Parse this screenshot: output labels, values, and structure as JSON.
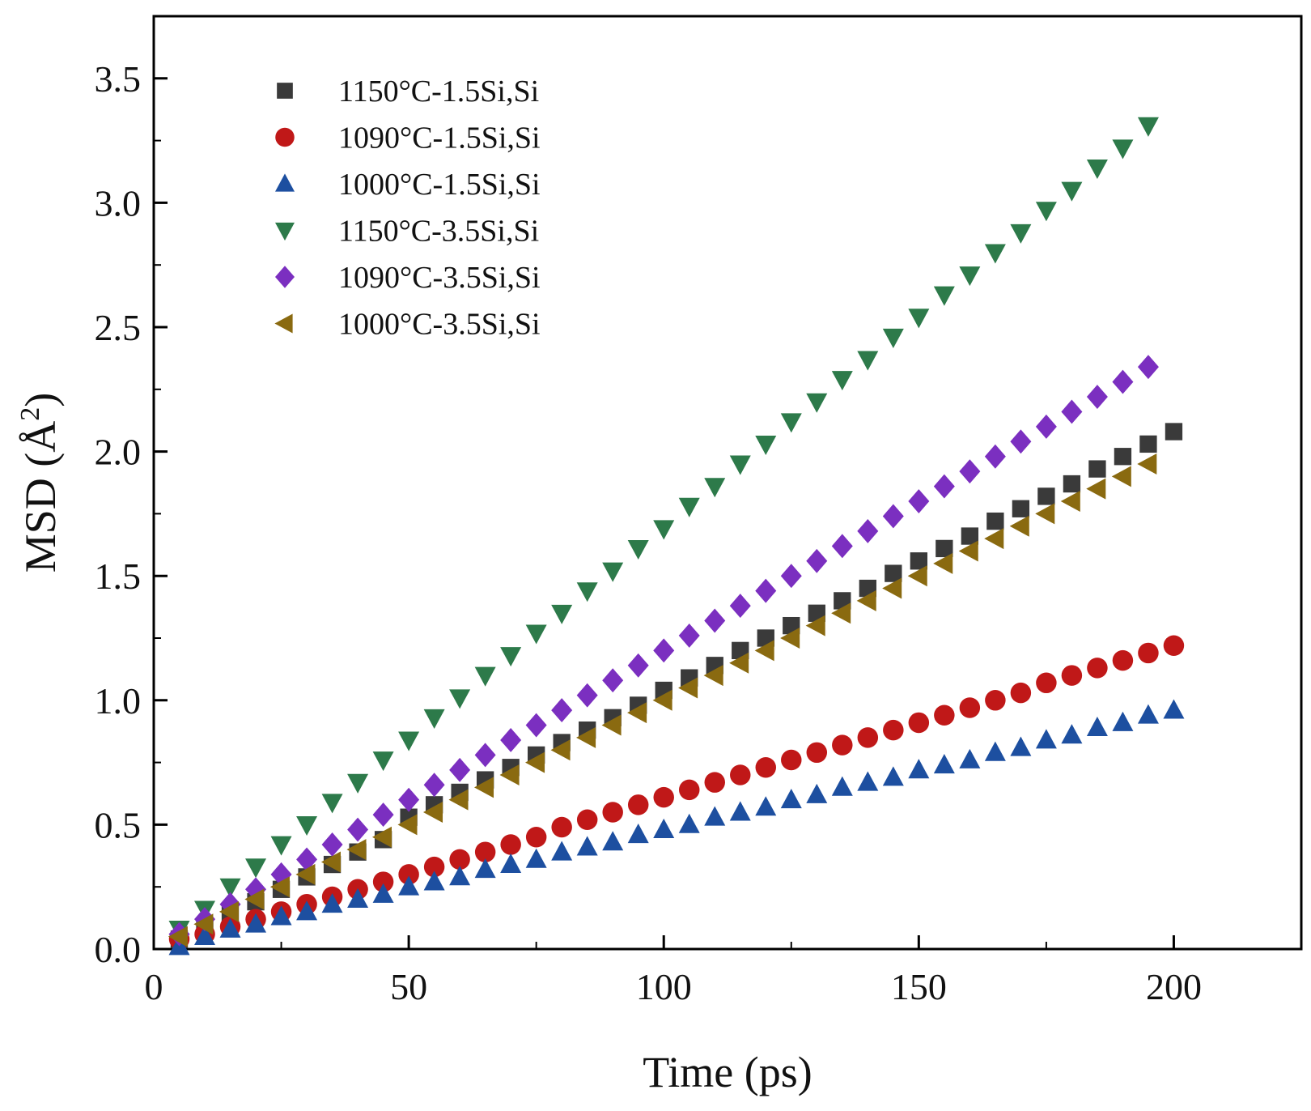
{
  "chart_data": {
    "type": "scatter",
    "title": "",
    "xlabel": "Time (ps)",
    "ylabel_main": "MSD (Å",
    "ylabel_sup": "2",
    "ylabel_close": ")",
    "xlim": [
      0,
      225
    ],
    "ylim": [
      0,
      3.75
    ],
    "xticks": [
      0,
      50,
      100,
      150,
      200
    ],
    "xtick_labels": [
      "0",
      "50",
      "100",
      "150",
      "200"
    ],
    "yticks": [
      0.0,
      0.5,
      1.0,
      1.5,
      2.0,
      2.5,
      3.0,
      3.5
    ],
    "ytick_labels": [
      "0.0",
      "0.5",
      "1.0",
      "1.5",
      "2.0",
      "2.5",
      "3.0",
      "3.5"
    ],
    "grid": false,
    "legend_position": "top-left",
    "series": [
      {
        "name": "1150°C-1.5Si,Si",
        "marker": "square",
        "color": "#3a3a3a",
        "x": [
          5,
          10,
          15,
          20,
          25,
          30,
          35,
          40,
          45,
          50,
          55,
          60,
          65,
          70,
          75,
          80,
          85,
          90,
          95,
          100,
          105,
          110,
          115,
          120,
          125,
          130,
          135,
          140,
          145,
          150,
          155,
          160,
          165,
          170,
          175,
          180,
          185,
          190,
          195,
          200
        ],
        "y": [
          0.04,
          0.09,
          0.14,
          0.19,
          0.24,
          0.29,
          0.34,
          0.39,
          0.44,
          0.53,
          0.58,
          0.63,
          0.68,
          0.73,
          0.78,
          0.83,
          0.88,
          0.93,
          0.98,
          1.04,
          1.09,
          1.14,
          1.2,
          1.25,
          1.3,
          1.35,
          1.4,
          1.45,
          1.51,
          1.56,
          1.61,
          1.66,
          1.72,
          1.77,
          1.82,
          1.87,
          1.93,
          1.98,
          2.03,
          2.08
        ]
      },
      {
        "name": "1090°C-1.5Si,Si",
        "marker": "circle",
        "color": "#c01818",
        "x": [
          5,
          10,
          15,
          20,
          25,
          30,
          35,
          40,
          45,
          50,
          55,
          60,
          65,
          70,
          75,
          80,
          85,
          90,
          95,
          100,
          105,
          110,
          115,
          120,
          125,
          130,
          135,
          140,
          145,
          150,
          155,
          160,
          165,
          170,
          175,
          180,
          185,
          190,
          195,
          200
        ],
        "y": [
          0.04,
          0.06,
          0.09,
          0.12,
          0.15,
          0.18,
          0.21,
          0.24,
          0.27,
          0.3,
          0.33,
          0.36,
          0.39,
          0.42,
          0.45,
          0.49,
          0.52,
          0.55,
          0.58,
          0.61,
          0.64,
          0.67,
          0.7,
          0.73,
          0.76,
          0.79,
          0.82,
          0.85,
          0.88,
          0.91,
          0.94,
          0.97,
          1.0,
          1.03,
          1.07,
          1.1,
          1.13,
          1.16,
          1.19,
          1.22
        ]
      },
      {
        "name": "1000°C-1.5Si,Si",
        "marker": "triangle-up",
        "color": "#1d4fa0",
        "x": [
          5,
          10,
          15,
          20,
          25,
          30,
          35,
          40,
          45,
          50,
          55,
          60,
          65,
          70,
          75,
          80,
          85,
          90,
          95,
          100,
          105,
          110,
          115,
          120,
          125,
          130,
          135,
          140,
          145,
          150,
          155,
          160,
          165,
          170,
          175,
          180,
          185,
          190,
          195,
          200
        ],
        "y": [
          0.01,
          0.05,
          0.08,
          0.1,
          0.13,
          0.15,
          0.18,
          0.2,
          0.22,
          0.25,
          0.27,
          0.29,
          0.32,
          0.34,
          0.36,
          0.39,
          0.41,
          0.43,
          0.46,
          0.48,
          0.5,
          0.53,
          0.55,
          0.57,
          0.6,
          0.62,
          0.65,
          0.67,
          0.69,
          0.72,
          0.74,
          0.76,
          0.79,
          0.81,
          0.84,
          0.86,
          0.89,
          0.91,
          0.94,
          0.96
        ]
      },
      {
        "name": "1150°C-3.5Si,Si",
        "marker": "triangle-down",
        "color": "#2d7a4a",
        "x": [
          5,
          10,
          15,
          20,
          25,
          30,
          35,
          40,
          45,
          50,
          55,
          60,
          65,
          70,
          75,
          80,
          85,
          90,
          95,
          100,
          105,
          110,
          115,
          120,
          125,
          130,
          135,
          140,
          145,
          150,
          155,
          160,
          165,
          170,
          175,
          180,
          185,
          190,
          195
        ],
        "y": [
          0.08,
          0.16,
          0.25,
          0.33,
          0.42,
          0.5,
          0.59,
          0.67,
          0.76,
          0.84,
          0.93,
          1.01,
          1.1,
          1.18,
          1.27,
          1.35,
          1.44,
          1.52,
          1.61,
          1.69,
          1.78,
          1.86,
          1.95,
          2.03,
          2.12,
          2.2,
          2.29,
          2.37,
          2.46,
          2.54,
          2.63,
          2.71,
          2.8,
          2.88,
          2.97,
          3.05,
          3.14,
          3.22,
          3.31
        ]
      },
      {
        "name": "1090°C-3.5Si,Si",
        "marker": "diamond",
        "color": "#7b2fc0",
        "x": [
          5,
          10,
          15,
          20,
          25,
          30,
          35,
          40,
          45,
          50,
          55,
          60,
          65,
          70,
          75,
          80,
          85,
          90,
          95,
          100,
          105,
          110,
          115,
          120,
          125,
          130,
          135,
          140,
          145,
          150,
          155,
          160,
          165,
          170,
          175,
          180,
          185,
          190,
          195
        ],
        "y": [
          0.06,
          0.12,
          0.18,
          0.24,
          0.3,
          0.36,
          0.42,
          0.48,
          0.54,
          0.6,
          0.66,
          0.72,
          0.78,
          0.84,
          0.9,
          0.96,
          1.02,
          1.08,
          1.14,
          1.2,
          1.26,
          1.32,
          1.38,
          1.44,
          1.5,
          1.56,
          1.62,
          1.68,
          1.74,
          1.8,
          1.86,
          1.92,
          1.98,
          2.04,
          2.1,
          2.16,
          2.22,
          2.28,
          2.34
        ]
      },
      {
        "name": "1000°C-3.5Si,Si",
        "marker": "triangle-left",
        "color": "#8a6a10",
        "x": [
          5,
          10,
          15,
          20,
          25,
          30,
          35,
          40,
          45,
          50,
          55,
          60,
          65,
          70,
          75,
          80,
          85,
          90,
          95,
          100,
          105,
          110,
          115,
          120,
          125,
          130,
          135,
          140,
          145,
          150,
          155,
          160,
          165,
          170,
          175,
          180,
          185,
          190,
          195
        ],
        "y": [
          0.05,
          0.1,
          0.15,
          0.2,
          0.25,
          0.3,
          0.35,
          0.4,
          0.45,
          0.5,
          0.55,
          0.6,
          0.65,
          0.7,
          0.75,
          0.8,
          0.85,
          0.9,
          0.95,
          1.0,
          1.05,
          1.1,
          1.15,
          1.2,
          1.25,
          1.3,
          1.35,
          1.4,
          1.45,
          1.5,
          1.55,
          1.6,
          1.65,
          1.7,
          1.75,
          1.8,
          1.85,
          1.9,
          1.95
        ]
      }
    ]
  }
}
